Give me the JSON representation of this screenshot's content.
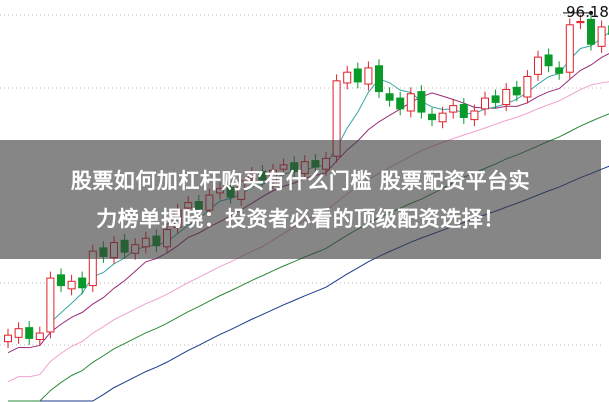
{
  "headline": {
    "line1": "股票如何加杠杆购买有什么门槛 股票配资平台实",
    "line2": "力榜单揭晓：投资者必看的顶级配资选择！"
  },
  "chart_data": {
    "type": "candlestick",
    "title": "",
    "xlabel": "",
    "ylabel": "",
    "ylim": [
      60,
      97.3
    ],
    "grid": "dotted horizontal",
    "max_label": "96.18",
    "open": [
      65.6,
      66.0,
      66.9,
      65.8,
      66.5,
      71.8,
      70.5,
      71.5,
      70.8,
      74.3,
      73.4,
      75.0,
      73.8,
      74.4,
      75.4,
      74.4,
      76.2,
      78.0,
      78.6,
      77.8,
      79.4,
      79.9,
      78.8,
      80.7,
      81.4,
      80.4,
      81.6,
      82.2,
      81.2,
      82.4,
      81.6,
      82.8,
      89.6,
      90.9,
      89.5,
      91.2,
      88.6,
      88.2,
      87.0,
      88.8,
      86.7,
      86.0,
      86.9,
      87.6,
      86.2,
      87.2,
      88.4,
      87.6,
      89.2,
      88.3,
      90.4,
      92.2,
      91.0,
      90.6,
      95.2,
      95.5,
      93.0,
      94.9
    ],
    "close": [
      66.2,
      66.8,
      65.9,
      66.4,
      71.5,
      70.8,
      71.2,
      70.6,
      74.0,
      73.5,
      74.8,
      73.9,
      74.6,
      75.2,
      74.5,
      76.0,
      77.8,
      78.5,
      77.9,
      79.2,
      79.8,
      79.0,
      80.5,
      81.2,
      80.6,
      81.5,
      82.0,
      81.4,
      82.3,
      81.8,
      82.6,
      89.8,
      90.6,
      89.7,
      91.0,
      88.8,
      88.0,
      87.2,
      88.6,
      86.9,
      86.2,
      86.8,
      87.5,
      86.4,
      87.0,
      88.2,
      87.8,
      89.0,
      88.5,
      90.2,
      92.0,
      91.2,
      90.5,
      95.0,
      95.3,
      93.2,
      94.8,
      94.1
    ],
    "colors": {
      "up": "#e0202a",
      "down": "#0a9a2a",
      "ma_short": "#3aa6a6",
      "ma_mid": "#9a2a7a",
      "ma_long": "#f0a0d0",
      "ma_longer": "#2a8a3a",
      "ma_longest": "#1a3a8a"
    }
  }
}
